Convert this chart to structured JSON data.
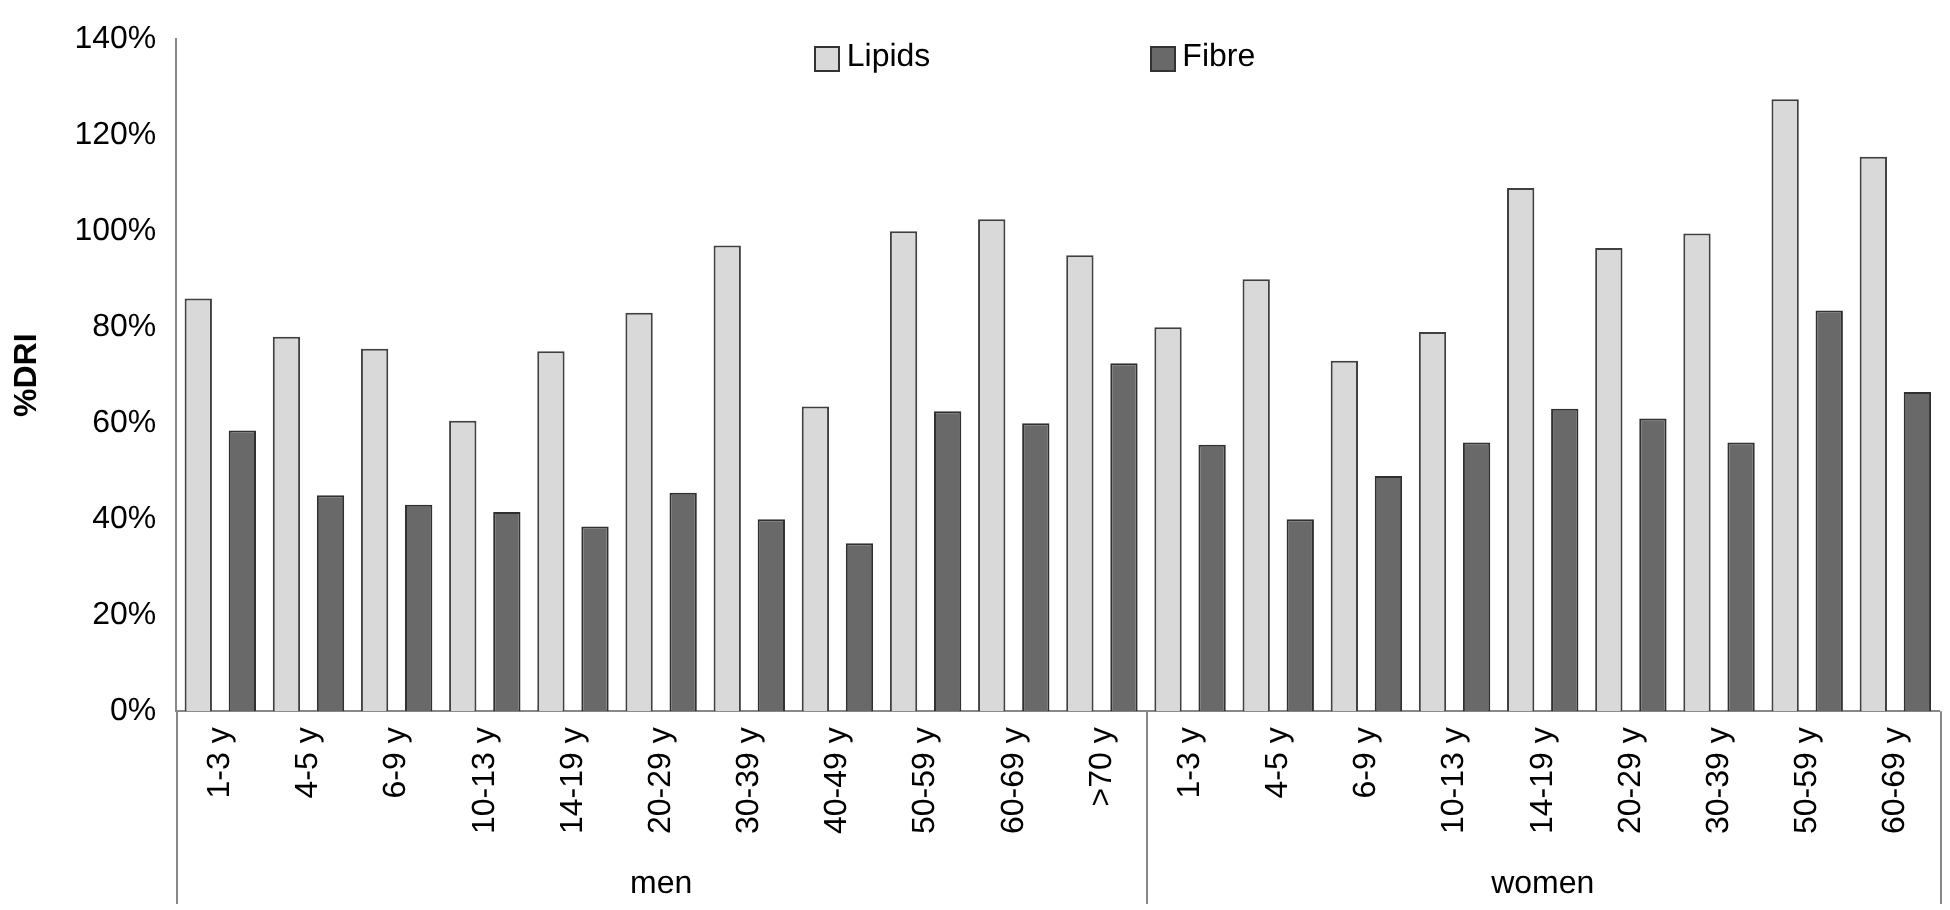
{
  "chart_data": {
    "type": "bar",
    "ylabel": "%DRI",
    "categories": [
      "1-3 y",
      "4-5 y",
      "6-9 y",
      "10-13 y",
      "14-19 y",
      "20-29 y",
      "30-39 y",
      "40-49 y",
      "50-59 y",
      "60-69 y",
      ">70 y",
      "1-3 y",
      "4-5 y",
      "6-9 y",
      "10-13 y",
      "14-19 y",
      "20-29 y",
      "30-39 y",
      "50-59 y",
      "60-69 y"
    ],
    "series": [
      {
        "name": "Lipids",
        "color": "#d9d9d9",
        "values": [
          86,
          78,
          75.5,
          60.5,
          75,
          83,
          97,
          63.5,
          100,
          102.5,
          95,
          80,
          90,
          73,
          79,
          109,
          96.5,
          99.5,
          127.5,
          115.5
        ]
      },
      {
        "name": "Fibre",
        "color": "#696969",
        "values": [
          58.5,
          45,
          43,
          41.5,
          38.5,
          45.5,
          40,
          35,
          62.5,
          60,
          72.5,
          55.5,
          40,
          49,
          56,
          63,
          61,
          56,
          83.5,
          66.5
        ]
      }
    ],
    "ylim": [
      0,
      140
    ],
    "yticks": [
      {
        "value": 0,
        "label": "0%"
      },
      {
        "value": 20,
        "label": "20%"
      },
      {
        "value": 40,
        "label": "40%"
      },
      {
        "value": 60,
        "label": "60%"
      },
      {
        "value": 80,
        "label": "80%"
      },
      {
        "value": 100,
        "label": "100%"
      },
      {
        "value": 120,
        "label": "120%"
      },
      {
        "value": 140,
        "label": "140%"
      }
    ],
    "annotations": [
      "men",
      "women"
    ],
    "grid": false,
    "legend": "top"
  }
}
